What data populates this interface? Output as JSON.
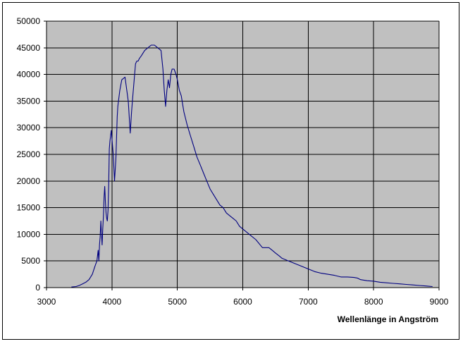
{
  "chart_data": {
    "type": "line",
    "title": "",
    "xlabel": "Wellenlänge in Angström",
    "ylabel": "",
    "xlim": [
      3000,
      9000
    ],
    "ylim": [
      0,
      50000
    ],
    "xticks": [
      3000,
      4000,
      5000,
      6000,
      7000,
      8000,
      9000
    ],
    "yticks": [
      0,
      5000,
      10000,
      15000,
      20000,
      25000,
      30000,
      35000,
      40000,
      45000,
      50000
    ],
    "grid": true,
    "legend": "none",
    "plot_background": "#c0c0c0",
    "line_color": "#000080",
    "series": [
      {
        "x": [
          3380,
          3450,
          3500,
          3550,
          3600,
          3650,
          3700,
          3740,
          3770,
          3790,
          3800,
          3810,
          3820,
          3830,
          3840,
          3850,
          3860,
          3870,
          3880,
          3890,
          3900,
          3910,
          3920,
          3930,
          3940,
          3950,
          3960,
          3970,
          3980,
          3990,
          4000,
          4020,
          4040,
          4060,
          4080,
          4090,
          4100,
          4120,
          4150,
          4200,
          4250,
          4280,
          4300,
          4320,
          4340,
          4360,
          4380,
          4400,
          4420,
          4450,
          4500,
          4550,
          4600,
          4650,
          4700,
          4750,
          4780,
          4800,
          4820,
          4840,
          4860,
          4880,
          4900,
          4920,
          4950,
          4980,
          5000,
          5030,
          5060,
          5100,
          5150,
          5200,
          5250,
          5300,
          5350,
          5400,
          5450,
          5500,
          5550,
          5600,
          5650,
          5700,
          5750,
          5800,
          5850,
          5900,
          5950,
          6000,
          6100,
          6200,
          6300,
          6400,
          6450,
          6500,
          6550,
          6600,
          6700,
          6800,
          6900,
          7000,
          7100,
          7200,
          7300,
          7400,
          7500,
          7600,
          7700,
          7750,
          7800,
          7900,
          8000,
          8100,
          8200,
          8300,
          8400,
          8500,
          8600,
          8700,
          8800,
          8900
        ],
        "y": [
          100,
          200,
          400,
          700,
          1000,
          1500,
          2500,
          4000,
          5000,
          7000,
          5000,
          8000,
          9500,
          12500,
          10000,
          8000,
          11000,
          13500,
          17000,
          19000,
          16000,
          14000,
          13000,
          12500,
          14500,
          19000,
          26000,
          27500,
          28500,
          29500,
          28000,
          25000,
          20000,
          24000,
          32000,
          34000,
          35000,
          37000,
          39000,
          39500,
          35000,
          29000,
          33000,
          36000,
          39000,
          42000,
          42500,
          42500,
          43000,
          43500,
          44500,
          45000,
          45500,
          45500,
          45000,
          44500,
          41000,
          37000,
          34000,
          37000,
          39000,
          37500,
          40000,
          41000,
          41000,
          40000,
          39000,
          37000,
          36000,
          33000,
          30500,
          28500,
          26500,
          24500,
          23000,
          21500,
          20000,
          18500,
          17500,
          16500,
          15500,
          15000,
          14000,
          13500,
          13000,
          12500,
          11500,
          11000,
          10000,
          9000,
          7500,
          7500,
          7000,
          6500,
          6000,
          5500,
          5000,
          4500,
          4000,
          3500,
          3000,
          2700,
          2500,
          2300,
          2000,
          2000,
          1900,
          1800,
          1500,
          1300,
          1200,
          1000,
          900,
          800,
          700,
          600,
          500,
          400,
          300,
          200
        ]
      }
    ]
  }
}
